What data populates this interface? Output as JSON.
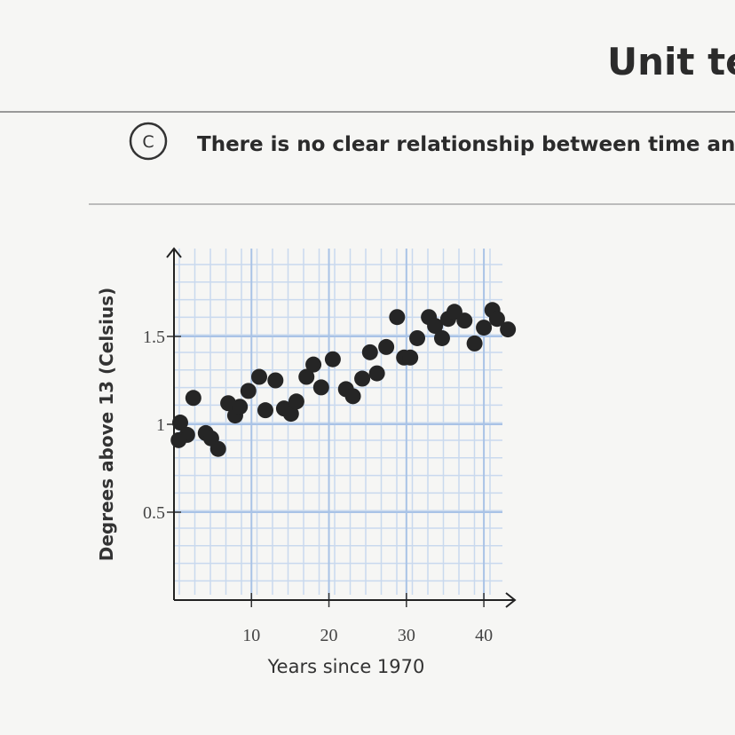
{
  "header": {
    "title": "Unit te"
  },
  "option": {
    "letter": "C",
    "text": "There is no clear relationship between time and"
  },
  "chart_data": {
    "type": "scatter",
    "x_label": "Years since 1970",
    "y_label": "Degrees above 13 (Celsius)",
    "x": [
      0.8,
      1.7,
      0.6,
      2.5,
      4.1,
      4.8,
      5.7,
      7.0,
      7.9,
      8.5,
      9.6,
      11.0,
      11.8,
      13.1,
      14.2,
      15.1,
      15.8,
      17.1,
      18.0,
      19.0,
      20.5,
      22.2,
      23.1,
      24.3,
      25.3,
      26.2,
      27.4,
      28.8,
      29.7,
      30.5,
      31.4,
      32.9,
      33.7,
      34.6,
      35.4,
      36.2,
      37.5,
      38.8,
      40.0,
      41.1,
      41.7,
      43.1
    ],
    "values": [
      1.01,
      0.94,
      0.91,
      1.15,
      0.95,
      0.92,
      0.86,
      1.12,
      1.05,
      1.1,
      1.19,
      1.27,
      1.08,
      1.25,
      1.09,
      1.06,
      1.13,
      1.27,
      1.34,
      1.21,
      1.37,
      1.2,
      1.16,
      1.26,
      1.41,
      1.29,
      1.44,
      1.61,
      1.38,
      1.38,
      1.49,
      1.61,
      1.56,
      1.49,
      1.6,
      1.64,
      1.59,
      1.46,
      1.55,
      1.65,
      1.6,
      1.54
    ],
    "color": "#252525",
    "xlim": [
      0,
      44
    ],
    "ylim": [
      0,
      2
    ],
    "xticks": [
      10,
      20,
      30,
      40
    ],
    "yticks": [
      0.5,
      1,
      1.5
    ],
    "grid": true
  }
}
